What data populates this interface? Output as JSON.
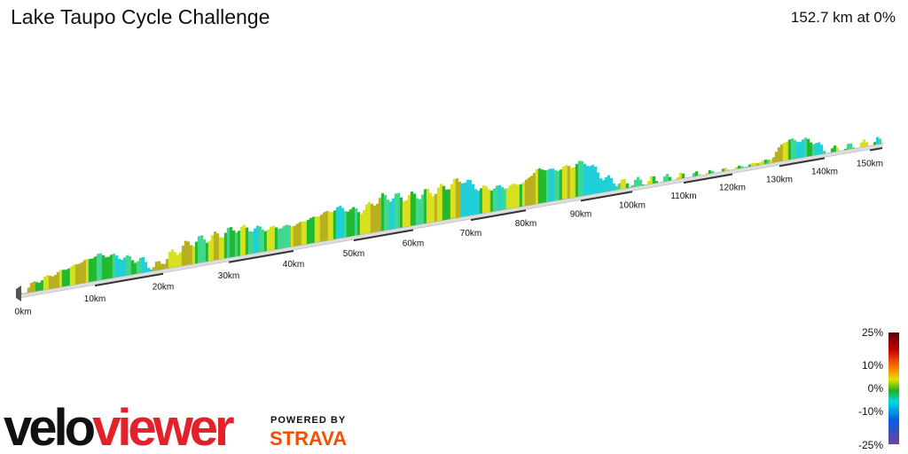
{
  "header": {
    "title": "Lake Taupo Cycle Challenge",
    "summary": "152.7 km at 0%"
  },
  "distance_labels": [
    "0km",
    "10km",
    "20km",
    "30km",
    "40km",
    "50km",
    "60km",
    "70km",
    "80km",
    "90km",
    "100km",
    "110km",
    "120km",
    "130km",
    "140km",
    "150km"
  ],
  "legend": {
    "labels": [
      "25%",
      "10%",
      "0%",
      "-10%",
      "-25%"
    ]
  },
  "branding": {
    "logo_first": "velo",
    "logo_second": "viewer",
    "powered_by": "POWERED BY",
    "strava": "STRAVA"
  }
}
